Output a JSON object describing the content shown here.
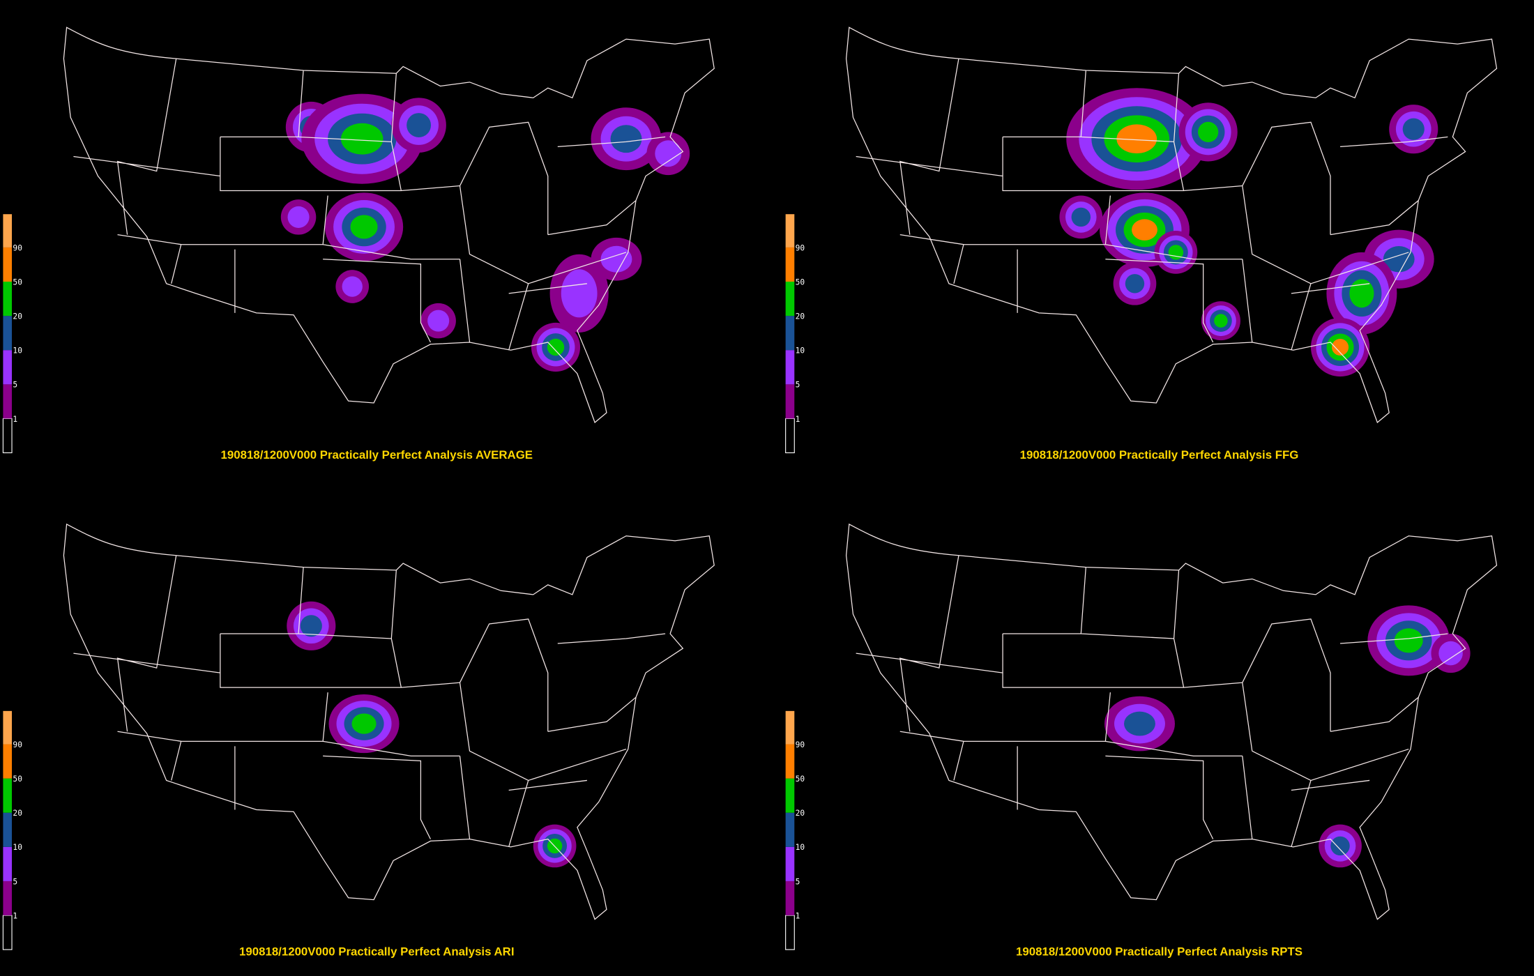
{
  "panels": [
    {
      "title": "190818/1200V000 Practically Perfect Analysis AVERAGE"
    },
    {
      "title": "190818/1200V000 Practically Perfect Analysis FFG"
    },
    {
      "title": "190818/1200V000 Practically Perfect Analysis ARI"
    },
    {
      "title": "190818/1200V000 Practically Perfect Analysis RPTS"
    }
  ],
  "legend": {
    "labels": [
      "1",
      "5",
      "10",
      "20",
      "50",
      "90"
    ],
    "colors": [
      "#000000",
      "#8b008b",
      "#9933ff",
      "#1a5296",
      "#00c800",
      "#ff7f00",
      "#ffa64d"
    ]
  }
}
